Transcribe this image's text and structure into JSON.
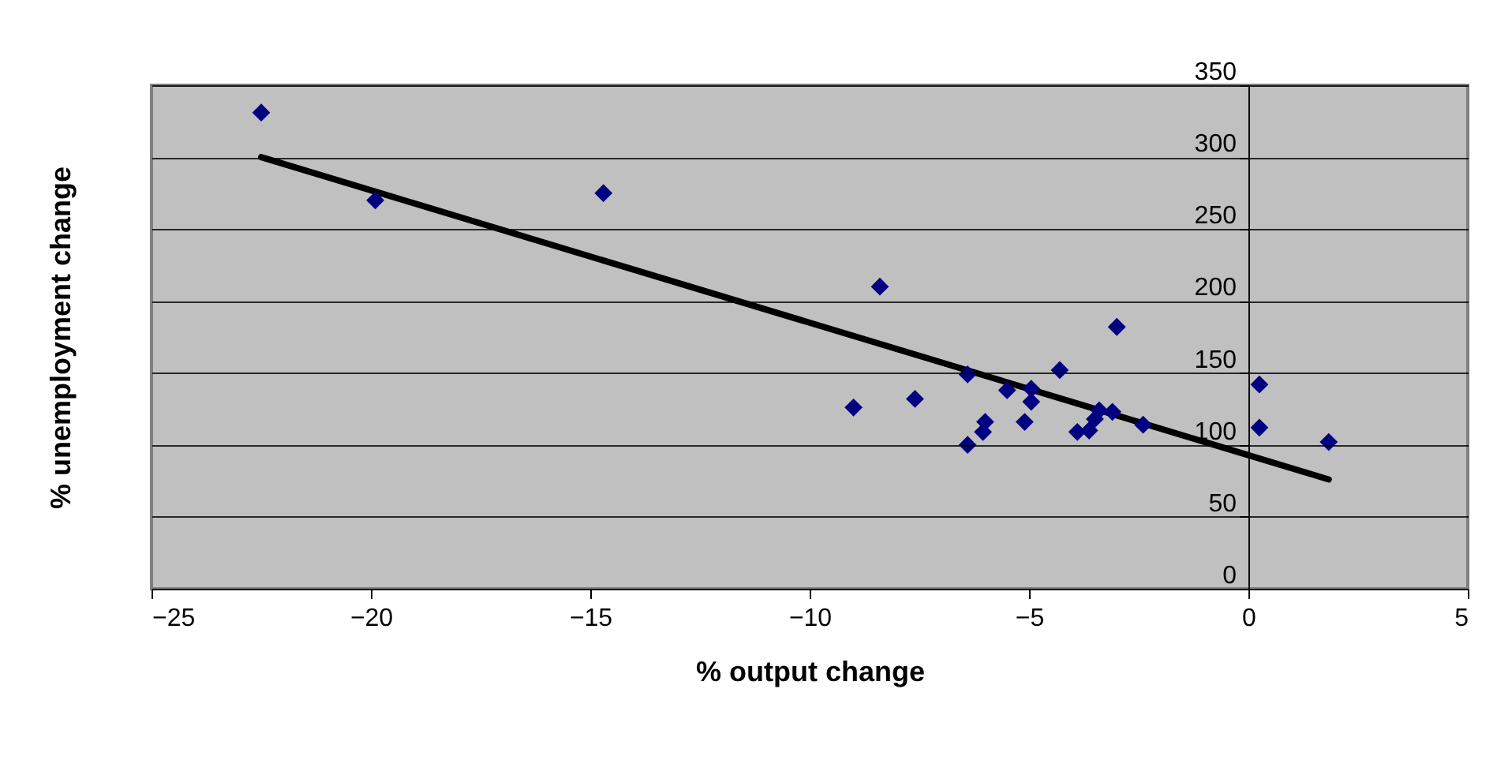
{
  "chart_data": {
    "type": "scatter",
    "xlabel": "% output change",
    "ylabel": "% unemployment change",
    "xlim": [
      -25,
      5
    ],
    "xticks": [
      -25,
      -20,
      -15,
      -10,
      -5,
      0,
      5
    ],
    "ylim": [
      0,
      350
    ],
    "yticks": [
      0,
      50,
      100,
      150,
      200,
      250,
      300,
      350
    ],
    "grid": "y",
    "marker": "diamond",
    "series": [
      {
        "color": "#000080",
        "x": [
          -22.5,
          -19.9,
          -14.7,
          -8.4,
          -9.0,
          -7.6,
          -6.4,
          -6.4,
          -6.0,
          -6.05,
          -5.5,
          -4.95,
          -4.95,
          -5.1,
          -4.3,
          -3.0,
          -3.9,
          -3.63,
          -3.5,
          -3.4,
          -3.1,
          -2.4,
          0.25,
          0.25,
          1.83
        ],
        "values": [
          331,
          270,
          275,
          210,
          126,
          132,
          149,
          100,
          116,
          109,
          138,
          139,
          130,
          116,
          152,
          182,
          109,
          110,
          118,
          124,
          123,
          114,
          142,
          112,
          102
        ]
      },
      {
        "type": "line",
        "color": "#000000",
        "marker": "none",
        "x": [
          -22.5,
          1.83
        ],
        "values": [
          300,
          76
        ]
      }
    ]
  }
}
